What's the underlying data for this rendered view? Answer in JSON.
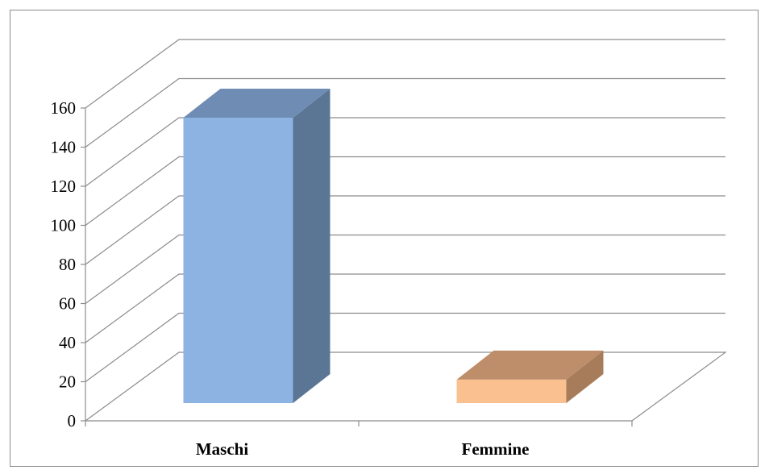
{
  "chart_data": {
    "type": "bar",
    "style": "3d-column",
    "categories": [
      "Maschi",
      "Femmine"
    ],
    "values": [
      146,
      12
    ],
    "y_ticks": [
      "0",
      "20",
      "40",
      "60",
      "80",
      "100",
      "120",
      "140",
      "160"
    ],
    "ylim": [
      0,
      160
    ],
    "grid": true,
    "legend": "none",
    "colors": {
      "Maschi": {
        "front": "#8db3e2",
        "side": "#5b7595",
        "top": "#6f8db4"
      },
      "Femmine": {
        "front": "#fac090",
        "side": "#a67c5a",
        "top": "#be8d6a"
      },
      "grid": "#8c8c8c"
    }
  }
}
